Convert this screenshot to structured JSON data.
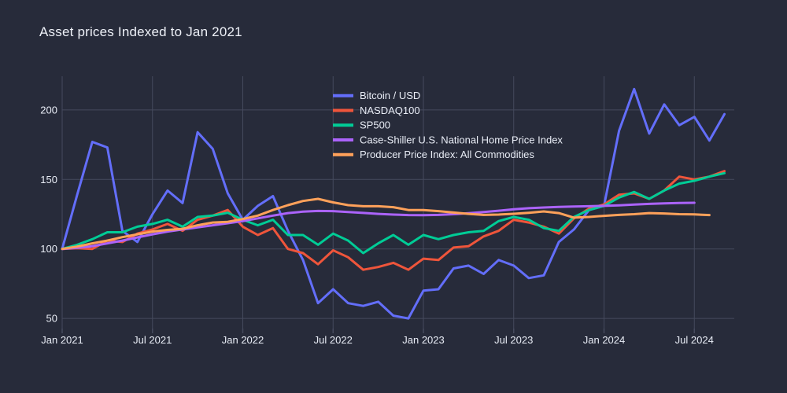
{
  "title": "Asset prices Indexed to Jan 2021",
  "colors": {
    "background": "#272b3a",
    "grid": "#454a5d",
    "tick_text": "#e9edf6",
    "title_text": "#eef1f8"
  },
  "chart_data": {
    "type": "line",
    "title": "Asset prices Indexed to Jan 2021",
    "xlabel": "",
    "ylabel": "",
    "grid": true,
    "legend_position": "top-center",
    "index_base": "Jan 2021 = 100",
    "x_unit": "months, Jan 2021 to Sep 2024",
    "x_tick_labels": [
      "Jan 2021",
      "Jul 2021",
      "Jan 2022",
      "Jul 2022",
      "Jan 2023",
      "Jul 2023",
      "Jan 2024",
      "Jul 2024"
    ],
    "x_tick_months": [
      0,
      6,
      12,
      18,
      24,
      30,
      36,
      42
    ],
    "y_ticks": [
      50,
      100,
      150,
      200
    ],
    "ylim": [
      41,
      224
    ],
    "series": [
      {
        "name": "Bitcoin / USD",
        "color": "#636efa",
        "values": [
          100,
          139,
          177,
          173,
          113,
          105,
          125,
          142,
          133,
          184,
          172,
          140,
          121,
          131,
          138,
          113,
          92,
          61,
          71,
          61,
          59,
          62,
          52,
          50,
          70,
          71,
          86,
          88,
          82,
          92,
          88,
          79,
          81,
          105,
          114,
          128,
          131,
          185,
          215,
          183,
          204,
          189,
          195,
          178,
          197
        ]
      },
      {
        "name": "NASDAQ100",
        "color": "#ef553b",
        "values": [
          100,
          100.5,
          100,
          106,
          105,
          111,
          114,
          118,
          113,
          121,
          124,
          128,
          116,
          110,
          115,
          100,
          97,
          89,
          99,
          94,
          85,
          87,
          90,
          85,
          93,
          92,
          101,
          102,
          109,
          113,
          121,
          119,
          116,
          111,
          122,
          129,
          132,
          139,
          140,
          136,
          142,
          152,
          150,
          152,
          156
        ]
      },
      {
        "name": "SP500",
        "color": "#00cc96",
        "values": [
          100,
          103,
          107,
          112,
          112,
          116,
          118,
          121,
          116,
          123,
          124,
          126,
          121,
          117,
          121,
          110,
          110,
          103,
          111,
          106,
          97,
          104,
          110,
          103,
          110,
          107,
          110,
          112,
          113,
          120,
          123,
          121,
          115,
          113,
          123,
          128,
          131,
          137,
          141,
          136,
          142,
          147,
          149,
          152,
          154.5
        ]
      },
      {
        "name": "Case-Shiller U.S. National Home Price Index",
        "color": "#ab63fa",
        "values": [
          100,
          100.8,
          102,
          104,
          106,
          108.3,
          110.5,
          112.5,
          114,
          115.5,
          117,
          118.5,
          120,
          122,
          124,
          125.8,
          126.8,
          127.3,
          127.2,
          126.6,
          125.9,
          125.2,
          124.7,
          124.4,
          124.3,
          124.5,
          125,
          125.7,
          126.5,
          127.5,
          128.5,
          129.3,
          129.8,
          130.2,
          130.5,
          130.7,
          131,
          131.4,
          131.9,
          132.4,
          132.8,
          133,
          133.2,
          null,
          null
        ]
      },
      {
        "name": "Producer Price Index: All Commodities",
        "color": "#ffa15a",
        "values": [
          100,
          101.7,
          104,
          106,
          108.5,
          110.5,
          112.5,
          113.7,
          114.5,
          117,
          119,
          119.5,
          121.5,
          124,
          128,
          131.5,
          134.5,
          136,
          133.5,
          131.5,
          130.7,
          130.7,
          130,
          128,
          128,
          127.2,
          126.2,
          125.2,
          124.5,
          124.7,
          125.3,
          126,
          127,
          125.8,
          122.5,
          123,
          123.8,
          124.5,
          125,
          125.8,
          125.5,
          125,
          124.8,
          124.4,
          null
        ]
      }
    ]
  }
}
